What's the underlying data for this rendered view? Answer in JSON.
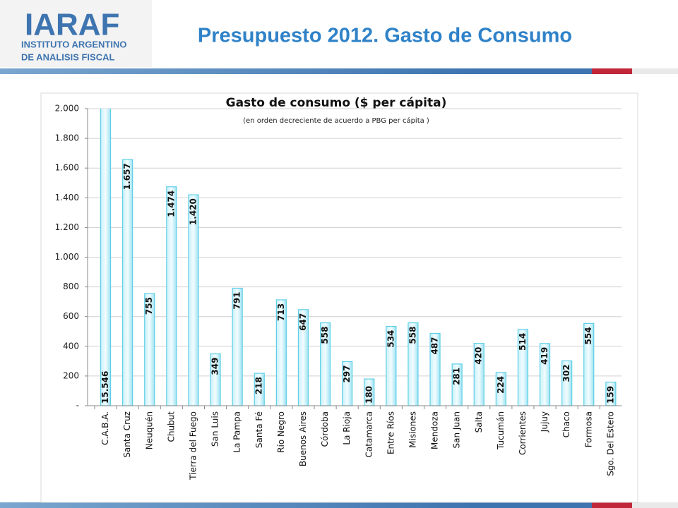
{
  "header": {
    "logo": "IARAF",
    "logo_line1": "INSTITUTO ARGENTINO",
    "logo_line2": "DE ANALISIS FISCAL",
    "title": "Presupuesto 2012. Gasto de Consumo"
  },
  "chart_data": {
    "type": "bar",
    "title": "Gasto de consumo ($ per cápita)",
    "subtitle": "(en orden decreciente de acuerdo a PBG per cápita )",
    "categories": [
      "C.A.B.A.",
      "Santa Cruz",
      "Neuquén",
      "Chubut",
      "Tierra del Fuego",
      "San Luis",
      "La Pampa",
      "Santa Fé",
      "Río Negro",
      "Buenos Aires",
      "Córdoba",
      "La Rioja",
      "Catamarca",
      "Entre Ríos",
      "Misiones",
      "Mendoza",
      "San Juan",
      "Salta",
      "Tucumán",
      "Corrientes",
      "Jujuy",
      "Chaco",
      "Formosa",
      "Sgo. Del Estero"
    ],
    "values": [
      15546,
      1657,
      755,
      1474,
      1420,
      349,
      791,
      218,
      713,
      647,
      558,
      297,
      180,
      534,
      558,
      487,
      281,
      420,
      224,
      514,
      419,
      302,
      554,
      159
    ],
    "value_labels": [
      "15.546",
      "1.657",
      "755",
      "1.474",
      "1.420",
      "349",
      "791",
      "218",
      "713",
      "647",
      "558",
      "297",
      "180",
      "534",
      "558",
      "487",
      "281",
      "420",
      "224",
      "514",
      "419",
      "302",
      "554",
      "159"
    ],
    "color": "#5fcfe6",
    "ylim": [
      0,
      2000
    ],
    "yticks": [
      {
        "value": 0,
        "label": "-"
      },
      200,
      400,
      600,
      800,
      {
        "value": 1000,
        "label": "1.000"
      },
      {
        "value": 1200,
        "label": "1.200"
      },
      {
        "value": 1400,
        "label": "1.400"
      },
      {
        "value": 1600,
        "label": "1.600"
      },
      {
        "value": 1800,
        "label": "1.800"
      },
      {
        "value": 2000,
        "label": "2.000"
      }
    ],
    "grid": true
  }
}
